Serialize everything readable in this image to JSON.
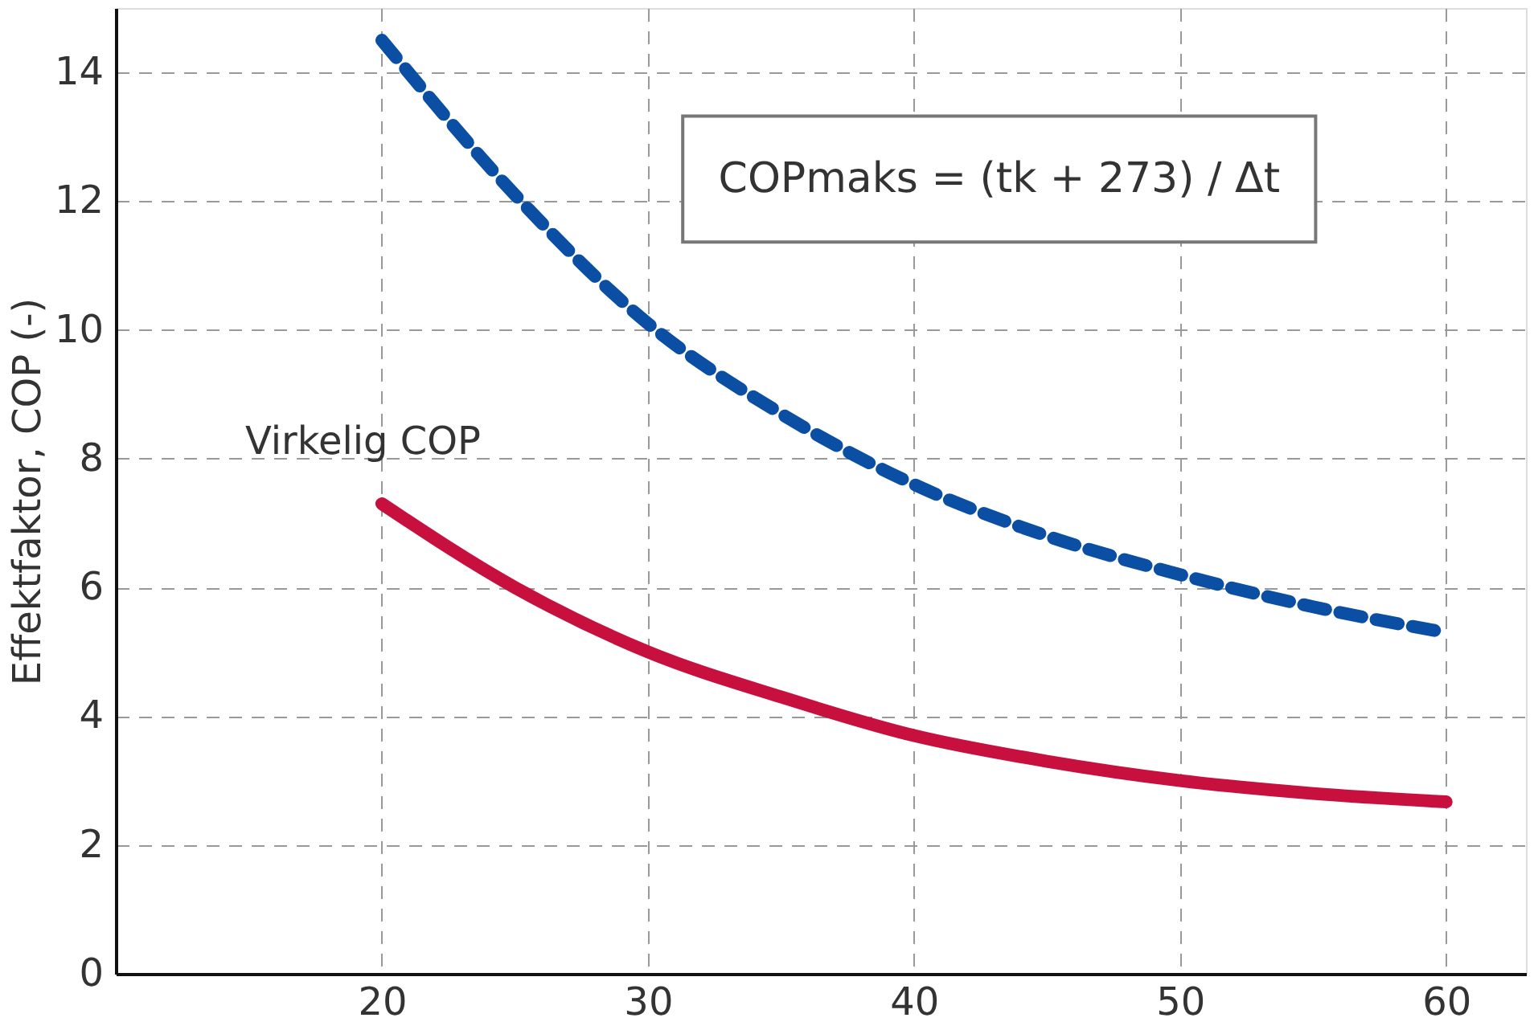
{
  "chart_data": {
    "type": "line",
    "ylabel": "Effektfaktor, COP (-)",
    "x": [
      20,
      25,
      30,
      35,
      40,
      45,
      50,
      55,
      60
    ],
    "xlim": [
      10,
      63
    ],
    "xticks": [
      20,
      30,
      40,
      50,
      60
    ],
    "ylim": [
      0,
      15
    ],
    "yticks": [
      0,
      2,
      4,
      6,
      8,
      10,
      12,
      14
    ],
    "grid": true,
    "marker": "none",
    "series": [
      {
        "color": "#0a4fa3",
        "line_style": "dashed",
        "values": [
          14.5,
          12.1,
          10.1,
          8.7,
          7.6,
          6.8,
          6.2,
          5.7,
          5.3
        ]
      },
      {
        "name": "Virkelig COP",
        "color": "#c8103e",
        "line_style": "solid",
        "values": [
          7.3,
          6.0,
          5.0,
          4.3,
          3.7,
          3.3,
          3.0,
          2.8,
          2.67
        ]
      }
    ],
    "annotations": [
      "COPmaks = (tk + 273) / Δt"
    ]
  }
}
